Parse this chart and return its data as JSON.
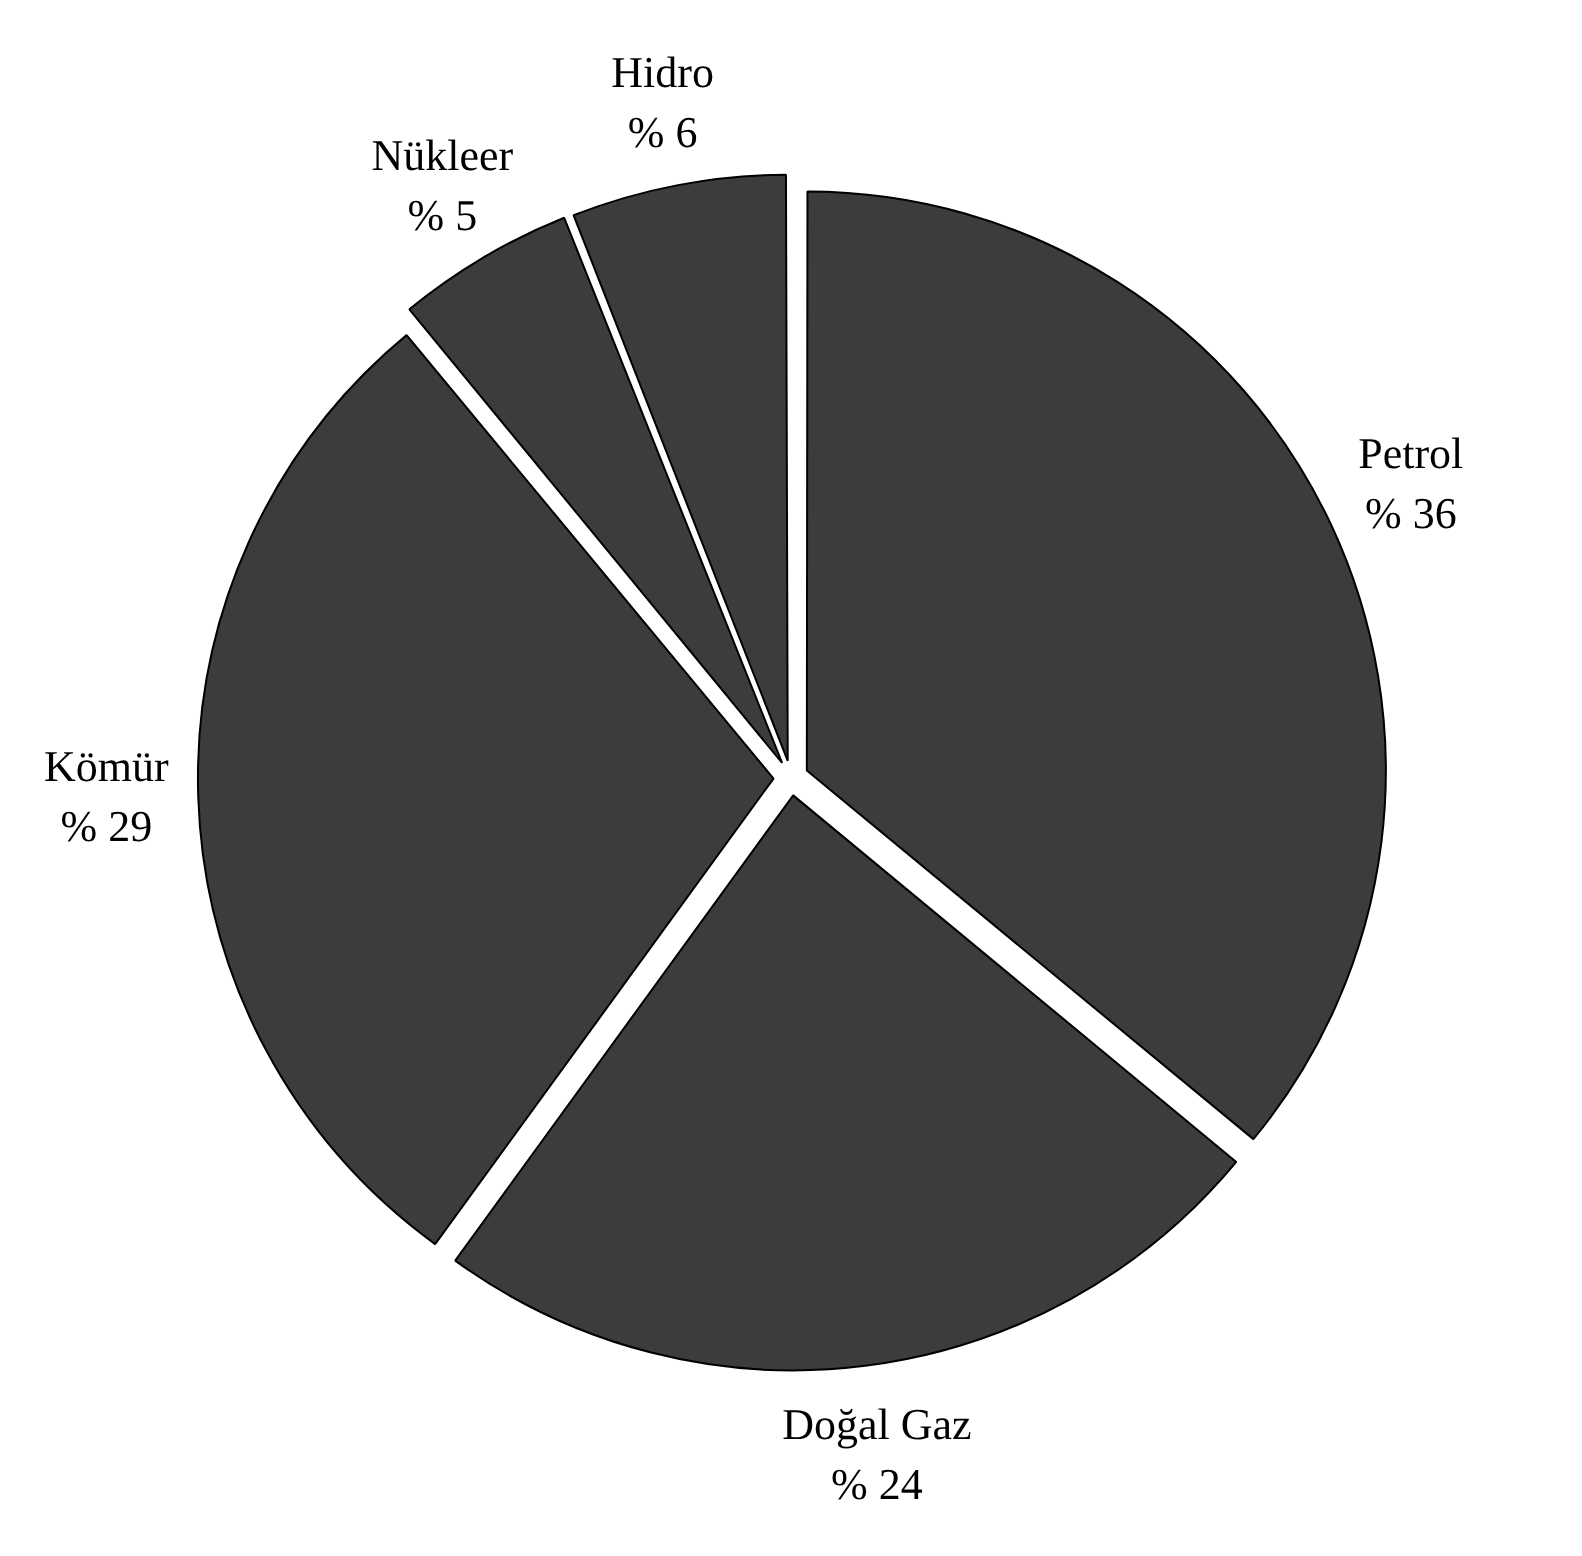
{
  "chart_data": {
    "type": "pie",
    "categories": [
      "Petrol",
      "Doğal Gaz",
      "Kömür",
      "Nükleer",
      "Hidro"
    ],
    "values": [
      36,
      24,
      29,
      5,
      6
    ],
    "value_labels": [
      "% 36",
      "% 24",
      "% 29",
      "% 5",
      "% 6"
    ],
    "colors": [
      "#3c3c3c",
      "#3c3c3c",
      "#3c3c3c",
      "#3c3c3c",
      "#3c3c3c"
    ],
    "legend": false
  }
}
